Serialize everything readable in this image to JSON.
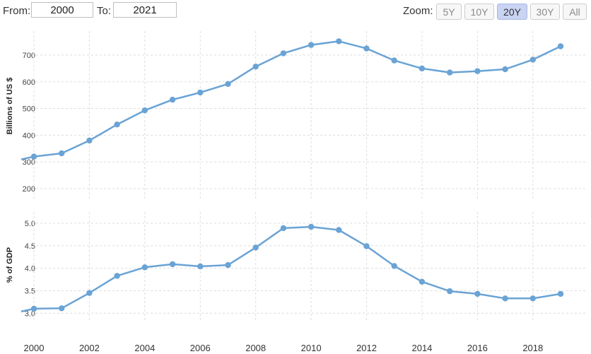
{
  "range": {
    "from_label": "From:",
    "from_value": "2000",
    "to_label": "To:",
    "to_value": "2021"
  },
  "zoom": {
    "label": "Zoom:",
    "buttons": [
      {
        "label": "5Y",
        "active": false
      },
      {
        "label": "10Y",
        "active": false
      },
      {
        "label": "20Y",
        "active": true
      },
      {
        "label": "30Y",
        "active": false
      },
      {
        "label": "All",
        "active": false
      }
    ]
  },
  "colors": {
    "series": "#6aa3d5",
    "grid": "#dddddd",
    "active_zoom": "#c9d3f2"
  },
  "chart_data": [
    {
      "type": "line",
      "title": "",
      "xlabel": "",
      "ylabel": "Billions of US $",
      "ylim": [
        160,
        790
      ],
      "yticks": [
        200,
        300,
        400,
        500,
        600,
        700
      ],
      "x": [
        2000,
        2001,
        2002,
        2003,
        2004,
        2005,
        2006,
        2007,
        2008,
        2009,
        2010,
        2011,
        2012,
        2013,
        2014,
        2015,
        2016,
        2017,
        2018,
        2019
      ],
      "series": [
        {
          "name": "",
          "values": [
            320,
            332,
            380,
            440,
            493,
            533,
            560,
            592,
            657,
            707,
            738,
            752,
            725,
            680,
            650,
            635,
            640,
            647,
            683,
            733
          ]
        }
      ],
      "grid": true
    },
    {
      "type": "line",
      "title": "",
      "xlabel": "",
      "ylabel": "% of GDP",
      "ylim": [
        2.8,
        5.25
      ],
      "yticks": [
        3.0,
        3.5,
        4.0,
        4.5,
        5.0
      ],
      "x": [
        2000,
        2001,
        2002,
        2003,
        2004,
        2005,
        2006,
        2007,
        2008,
        2009,
        2010,
        2011,
        2012,
        2013,
        2014,
        2015,
        2016,
        2017,
        2018,
        2019
      ],
      "xticks": [
        2000,
        2002,
        2004,
        2006,
        2008,
        2010,
        2012,
        2014,
        2016,
        2018
      ],
      "series": [
        {
          "name": "",
          "values": [
            3.1,
            3.11,
            3.45,
            3.83,
            4.02,
            4.09,
            4.04,
            4.07,
            4.46,
            4.89,
            4.92,
            4.85,
            4.49,
            4.05,
            3.7,
            3.49,
            3.43,
            3.33,
            3.33,
            3.43
          ]
        }
      ],
      "grid": true
    }
  ]
}
